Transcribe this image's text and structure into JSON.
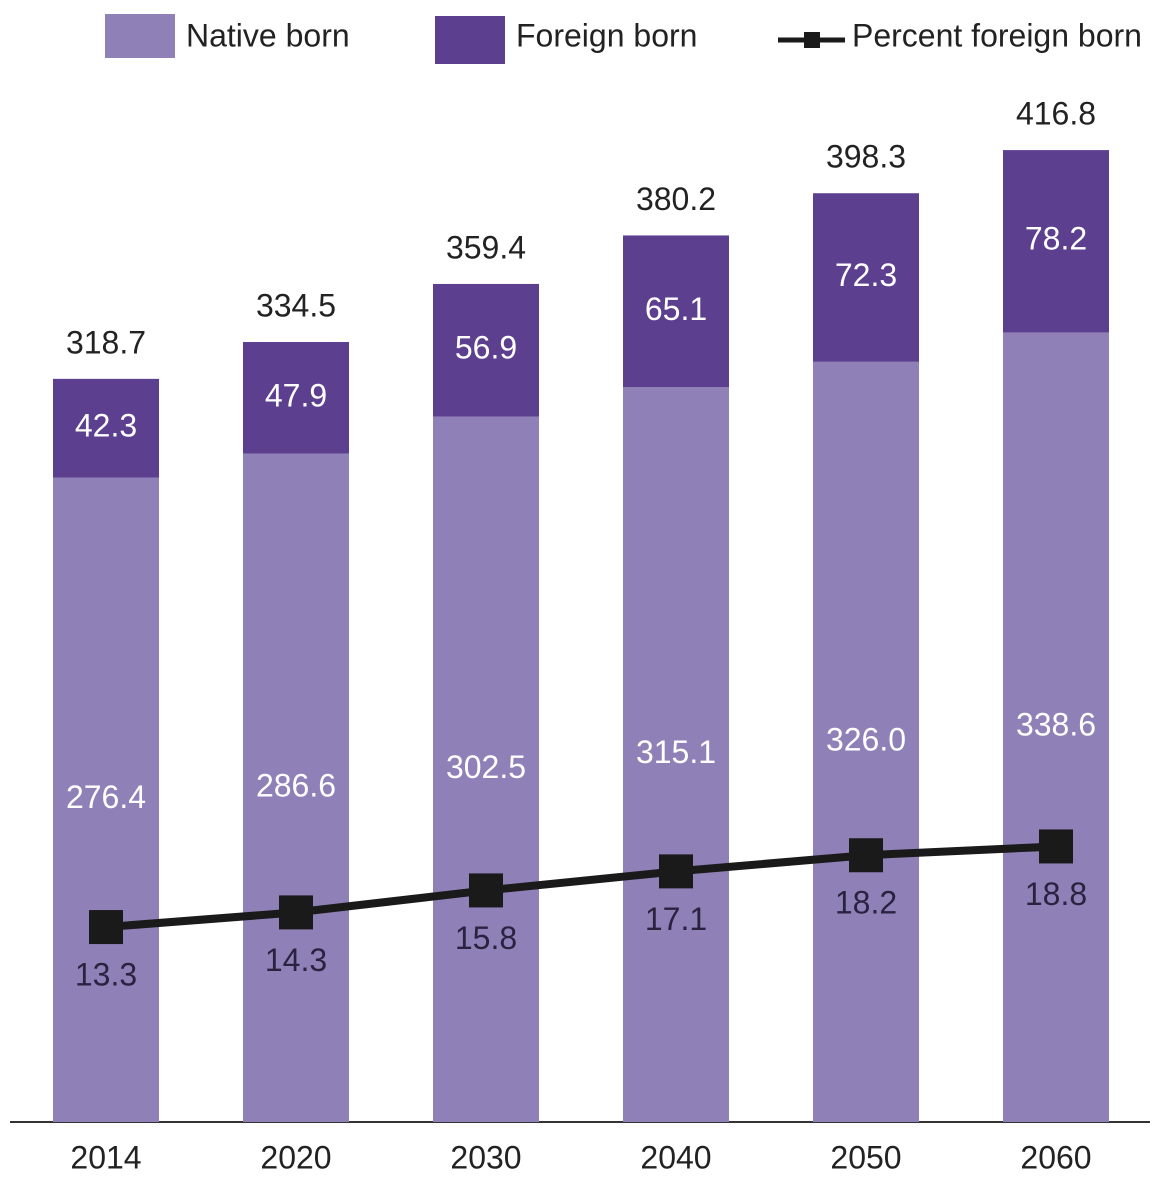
{
  "chart_data": {
    "type": "bar",
    "stacked": true,
    "categories": [
      "2014",
      "2020",
      "2030",
      "2040",
      "2050",
      "2060"
    ],
    "series": [
      {
        "name": "Native born",
        "color": "#9080b8",
        "values": [
          276.4,
          286.6,
          302.5,
          315.1,
          326.0,
          338.6
        ],
        "value_labels": [
          "276.4",
          "286.6",
          "302.5",
          "315.1",
          "326.0",
          "338.6"
        ]
      },
      {
        "name": "Foreign born",
        "color": "#5d3f8f",
        "values": [
          42.3,
          47.9,
          56.9,
          65.1,
          72.3,
          78.2
        ]
      },
      {
        "name": "Percent foreign born",
        "type": "line",
        "axis": "y2",
        "color": "#1a1a1a",
        "values": [
          13.3,
          14.3,
          15.8,
          17.1,
          18.2,
          18.8
        ]
      }
    ],
    "totals": [
      318.7,
      334.5,
      359.4,
      380.2,
      398.3,
      416.8
    ],
    "ylim": [
      0,
      440
    ],
    "y2lim": [
      0,
      70
    ],
    "legend": "top"
  }
}
